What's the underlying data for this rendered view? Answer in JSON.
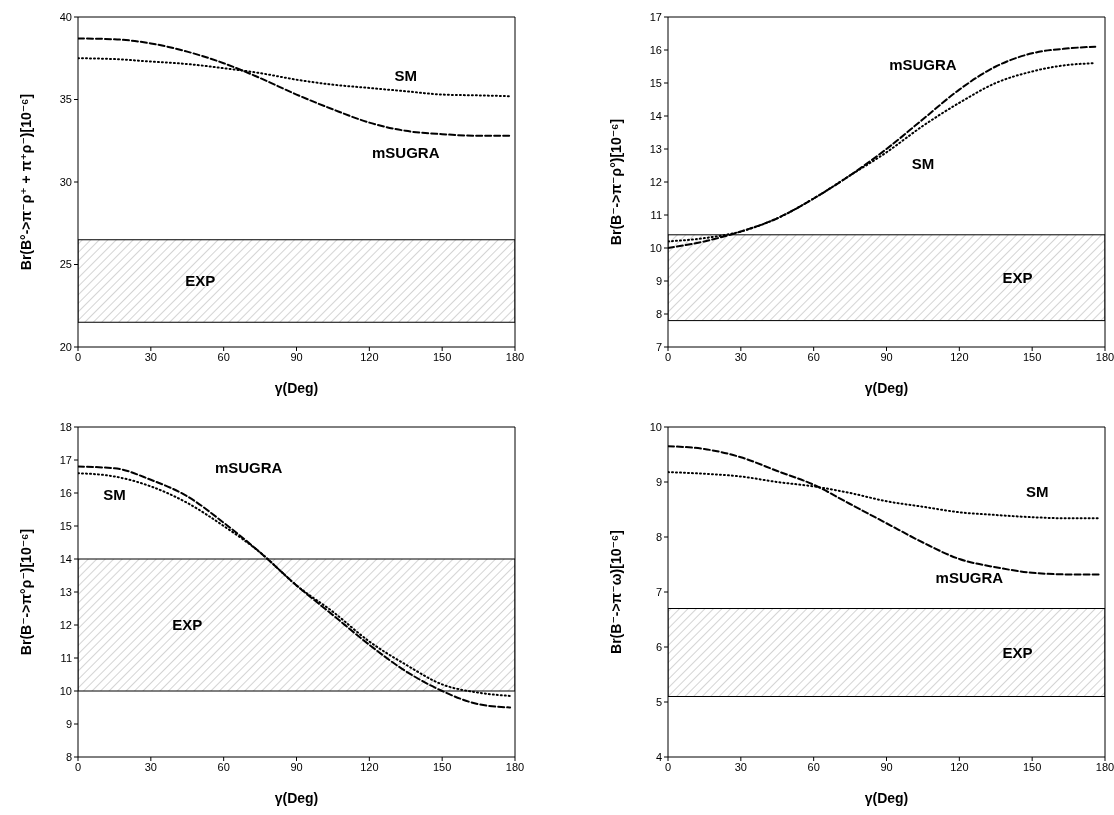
{
  "chart_data": [
    {
      "type": "line",
      "xlabel": "γ(Deg)",
      "ylabel": "Br(B°->π⁻ρ⁺ + π⁺ρ⁻)[10⁻⁶]",
      "x": [
        0,
        15,
        30,
        45,
        60,
        75,
        90,
        105,
        120,
        135,
        150,
        165,
        178
      ],
      "xlim": [
        0,
        180
      ],
      "xticks": [
        0,
        30,
        60,
        90,
        120,
        150,
        180
      ],
      "ylim": [
        20,
        40
      ],
      "yticks": [
        20,
        25,
        30,
        35,
        40
      ],
      "series": [
        {
          "name": "mSUGRA",
          "color": "#000000",
          "line_style": "dashed",
          "values": [
            38.7,
            38.65,
            38.4,
            37.9,
            37.2,
            36.3,
            35.3,
            34.4,
            33.6,
            33.1,
            32.9,
            32.8,
            32.8
          ]
        },
        {
          "name": "SM",
          "color": "#000000",
          "line_style": "dotted",
          "values": [
            37.5,
            37.45,
            37.3,
            37.15,
            36.9,
            36.6,
            36.2,
            35.9,
            35.7,
            35.5,
            35.3,
            35.25,
            35.2
          ]
        }
      ],
      "bands": [
        {
          "axis": "y",
          "from": 21.5,
          "to": 26.5,
          "label": "EXP"
        }
      ]
    },
    {
      "type": "line",
      "xlabel": "γ(Deg)",
      "ylabel": "Br(B⁻->π⁻ρ°)[10⁻⁶]",
      "x": [
        0,
        15,
        30,
        45,
        60,
        75,
        90,
        105,
        120,
        135,
        150,
        165,
        176
      ],
      "xlim": [
        0,
        180
      ],
      "xticks": [
        0,
        30,
        60,
        90,
        120,
        150,
        180
      ],
      "ylim": [
        7,
        17
      ],
      "yticks": [
        7,
        8,
        9,
        10,
        11,
        12,
        13,
        14,
        15,
        16,
        17
      ],
      "series": [
        {
          "name": "mSUGRA",
          "color": "#000000",
          "line_style": "dashed",
          "values": [
            10.0,
            10.2,
            10.5,
            10.9,
            11.5,
            12.2,
            13.0,
            13.9,
            14.8,
            15.5,
            15.9,
            16.05,
            16.1
          ]
        },
        {
          "name": "SM",
          "color": "#000000",
          "line_style": "dotted",
          "values": [
            10.2,
            10.3,
            10.5,
            10.9,
            11.5,
            12.2,
            12.9,
            13.7,
            14.4,
            15.0,
            15.35,
            15.55,
            15.6
          ]
        }
      ],
      "bands": [
        {
          "axis": "y",
          "from": 7.8,
          "to": 10.4,
          "label": "EXP"
        }
      ]
    },
    {
      "type": "line",
      "xlabel": "γ(Deg)",
      "ylabel": "Br(B⁻->π°ρ⁻)[10⁻⁶]",
      "x": [
        0,
        15,
        30,
        45,
        60,
        75,
        90,
        105,
        120,
        135,
        150,
        165,
        178
      ],
      "xlim": [
        0,
        180
      ],
      "xticks": [
        0,
        30,
        60,
        90,
        120,
        150,
        180
      ],
      "ylim": [
        8,
        18
      ],
      "yticks": [
        8,
        9,
        10,
        11,
        12,
        13,
        14,
        15,
        16,
        17,
        18
      ],
      "series": [
        {
          "name": "mSUGRA",
          "color": "#000000",
          "line_style": "dashed",
          "values": [
            16.8,
            16.75,
            16.4,
            15.9,
            15.1,
            14.2,
            13.2,
            12.3,
            11.4,
            10.6,
            10.0,
            9.6,
            9.5
          ]
        },
        {
          "name": "SM",
          "color": "#000000",
          "line_style": "dotted",
          "values": [
            16.6,
            16.5,
            16.2,
            15.7,
            15.0,
            14.2,
            13.2,
            12.4,
            11.5,
            10.8,
            10.2,
            9.95,
            9.85
          ]
        }
      ],
      "bands": [
        {
          "axis": "y",
          "from": 10,
          "to": 14,
          "label": "EXP"
        }
      ]
    },
    {
      "type": "line",
      "xlabel": "γ(Deg)",
      "ylabel": "Br(B⁻->π⁻ω)[10⁻⁶]",
      "x": [
        0,
        15,
        30,
        45,
        60,
        75,
        90,
        105,
        120,
        135,
        150,
        165,
        178
      ],
      "xlim": [
        0,
        180
      ],
      "xticks": [
        0,
        30,
        60,
        90,
        120,
        150,
        180
      ],
      "ylim": [
        4,
        10
      ],
      "yticks": [
        4,
        5,
        6,
        7,
        8,
        9,
        10
      ],
      "series": [
        {
          "name": "mSUGRA",
          "color": "#000000",
          "line_style": "dashed",
          "values": [
            9.65,
            9.6,
            9.45,
            9.2,
            8.95,
            8.6,
            8.25,
            7.9,
            7.6,
            7.45,
            7.35,
            7.32,
            7.32
          ]
        },
        {
          "name": "SM",
          "color": "#000000",
          "line_style": "dotted",
          "values": [
            9.18,
            9.15,
            9.1,
            9.0,
            8.92,
            8.8,
            8.65,
            8.55,
            8.45,
            8.4,
            8.36,
            8.34,
            8.34
          ]
        }
      ],
      "bands": [
        {
          "axis": "y",
          "from": 5.1,
          "to": 6.7,
          "label": "EXP"
        }
      ]
    }
  ]
}
